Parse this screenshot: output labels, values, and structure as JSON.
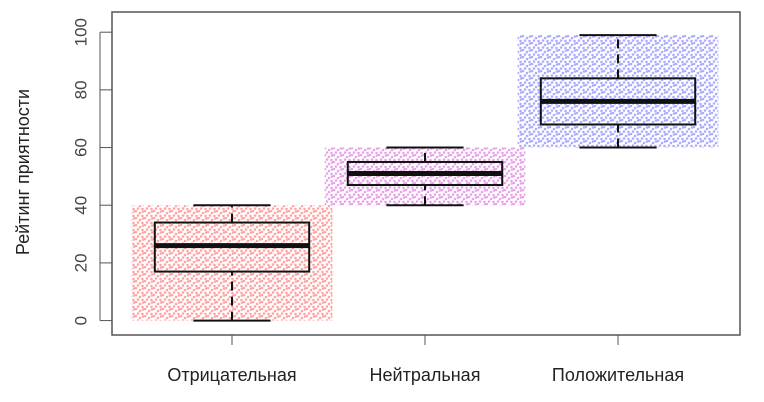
{
  "chart_data": {
    "type": "box",
    "y_label": "Рейтинг приятности",
    "categories": [
      "Отрицательная",
      "Нейтральная",
      "Положительная"
    ],
    "boxes": [
      {
        "min": 0,
        "q1": 17,
        "median": 26,
        "q3": 34,
        "max": 40,
        "color": "#ff3333"
      },
      {
        "min": 40,
        "q1": 47,
        "median": 51,
        "q3": 55,
        "max": 60,
        "color": "#cc33cc"
      },
      {
        "min": 60,
        "q1": 68,
        "median": 76,
        "q3": 84,
        "max": 99,
        "color": "#4444ff"
      }
    ],
    "ylim": [
      -5,
      107
    ],
    "yticks": [
      0,
      20,
      40,
      60,
      80,
      100
    ]
  }
}
